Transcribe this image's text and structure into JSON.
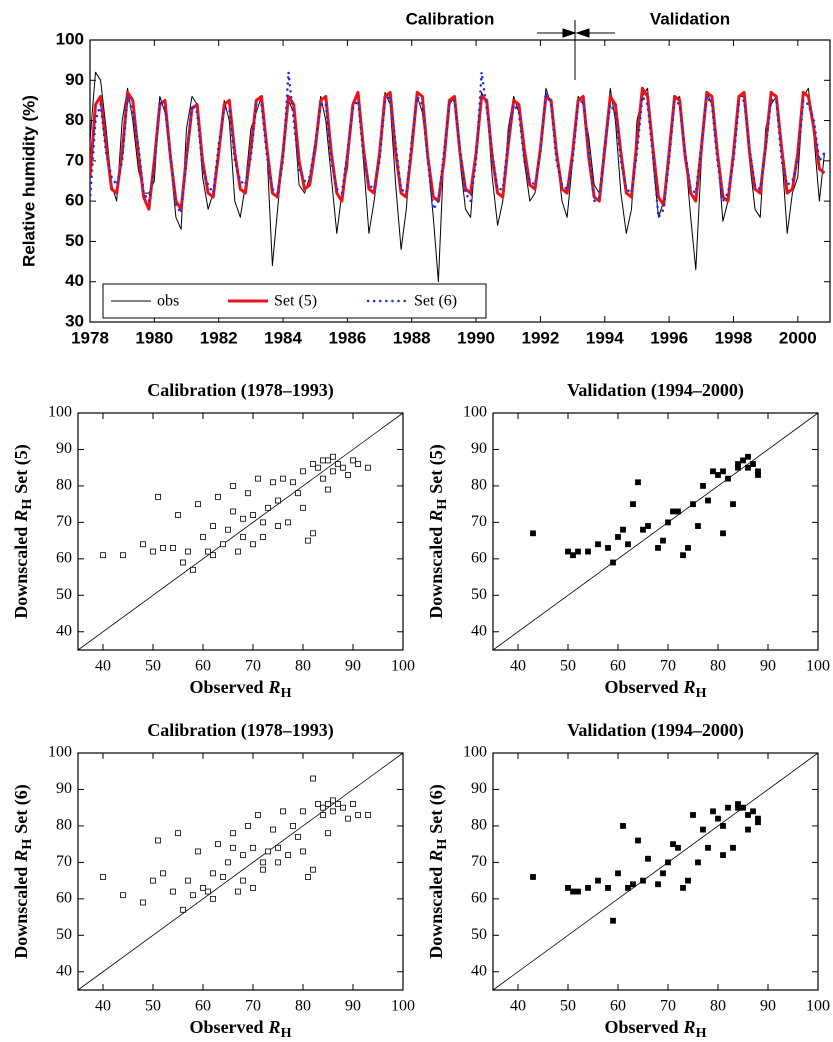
{
  "chart_data": [
    {
      "type": "line",
      "annotations": [
        "Calibration",
        "Validation"
      ],
      "ylabel": "Relative humidity (%)",
      "xlim": [
        1978,
        2001
      ],
      "ylim": [
        30,
        100
      ],
      "xticks": [
        1978,
        1980,
        1982,
        1984,
        1986,
        1988,
        1990,
        1992,
        1994,
        1996,
        1998,
        2000
      ],
      "yticks": [
        30,
        40,
        50,
        60,
        70,
        80,
        90,
        100
      ],
      "legend": "lower left",
      "x": [
        1978,
        1978.17,
        1978.33,
        1978.5,
        1978.67,
        1978.83,
        1979,
        1979.17,
        1979.33,
        1979.5,
        1979.67,
        1979.83,
        1980,
        1980.17,
        1980.33,
        1980.5,
        1980.67,
        1980.83,
        1981,
        1981.17,
        1981.33,
        1981.5,
        1981.67,
        1981.83,
        1982,
        1982.17,
        1982.33,
        1982.5,
        1982.67,
        1982.83,
        1983,
        1983.17,
        1983.33,
        1983.5,
        1983.67,
        1983.83,
        1984,
        1984.17,
        1984.33,
        1984.5,
        1984.67,
        1984.83,
        1985,
        1985.17,
        1985.33,
        1985.5,
        1985.67,
        1985.83,
        1986,
        1986.17,
        1986.33,
        1986.5,
        1986.67,
        1986.83,
        1987,
        1987.17,
        1987.33,
        1987.5,
        1987.67,
        1987.83,
        1988,
        1988.17,
        1988.33,
        1988.5,
        1988.67,
        1988.83,
        1989,
        1989.17,
        1989.33,
        1989.5,
        1989.67,
        1989.83,
        1990,
        1990.17,
        1990.33,
        1990.5,
        1990.67,
        1990.83,
        1991,
        1991.17,
        1991.33,
        1991.5,
        1991.67,
        1991.83,
        1992,
        1992.17,
        1992.33,
        1992.5,
        1992.67,
        1992.83,
        1993,
        1993.17,
        1993.33,
        1993.5,
        1993.67,
        1993.83,
        1994,
        1994.17,
        1994.33,
        1994.5,
        1994.67,
        1994.83,
        1995,
        1995.17,
        1995.33,
        1995.5,
        1995.67,
        1995.83,
        1996,
        1996.17,
        1996.33,
        1996.5,
        1996.67,
        1996.83,
        1997,
        1997.17,
        1997.33,
        1997.5,
        1997.67,
        1997.83,
        1998,
        1998.17,
        1998.33,
        1998.5,
        1998.67,
        1998.83,
        1999,
        1999.17,
        1999.33,
        1999.5,
        1999.67,
        1999.83,
        2000,
        2000.17,
        2000.33,
        2000.5,
        2000.67,
        2000.83
      ],
      "series": [
        {
          "name": "obs",
          "color": "#000000",
          "linestyle": "solid",
          "line_width": 1,
          "values": [
            75,
            92,
            90,
            78,
            64,
            60,
            80,
            88,
            80,
            68,
            62,
            62,
            65,
            86,
            82,
            70,
            56,
            53,
            78,
            86,
            84,
            66,
            58,
            62,
            70,
            85,
            80,
            60,
            56,
            64,
            78,
            82,
            86,
            72,
            44,
            58,
            72,
            85,
            82,
            64,
            62,
            66,
            75,
            86,
            80,
            66,
            52,
            62,
            68,
            84,
            86,
            70,
            52,
            60,
            70,
            87,
            84,
            64,
            48,
            58,
            76,
            86,
            82,
            70,
            56,
            40,
            72,
            84,
            86,
            70,
            58,
            56,
            74,
            87,
            84,
            66,
            54,
            60,
            78,
            86,
            82,
            70,
            60,
            62,
            72,
            88,
            84,
            72,
            60,
            56,
            70,
            86,
            84,
            76,
            64,
            62,
            75,
            88,
            80,
            62,
            52,
            58,
            80,
            86,
            88,
            70,
            56,
            60,
            74,
            85,
            86,
            72,
            56,
            43,
            70,
            87,
            84,
            72,
            55,
            60,
            72,
            86,
            86,
            70,
            58,
            56,
            78,
            84,
            86,
            72,
            52,
            62,
            66,
            86,
            88,
            76,
            60,
            72
          ]
        },
        {
          "name": "Set (5)",
          "color": "#e8141c",
          "linestyle": "solid",
          "line_width": 3,
          "values": [
            66,
            84,
            86,
            74,
            63,
            62,
            72,
            87,
            85,
            72,
            61,
            58,
            70,
            84,
            85,
            71,
            60,
            58,
            71,
            83,
            84,
            70,
            62,
            61,
            72,
            84,
            85,
            72,
            63,
            62,
            73,
            85,
            86,
            73,
            62,
            61,
            72,
            86,
            84,
            70,
            63,
            64,
            73,
            85,
            86,
            72,
            62,
            60,
            71,
            84,
            87,
            73,
            63,
            62,
            72,
            86,
            87,
            72,
            62,
            61,
            73,
            87,
            86,
            71,
            61,
            60,
            70,
            85,
            86,
            72,
            63,
            62,
            72,
            86,
            85,
            71,
            62,
            61,
            74,
            85,
            84,
            73,
            64,
            63,
            73,
            86,
            85,
            72,
            63,
            62,
            72,
            85,
            86,
            71,
            61,
            60,
            73,
            86,
            84,
            72,
            62,
            61,
            75,
            88,
            86,
            73,
            61,
            59,
            72,
            86,
            85,
            71,
            62,
            60,
            73,
            87,
            86,
            72,
            61,
            60,
            72,
            86,
            87,
            72,
            63,
            62,
            74,
            87,
            86,
            73,
            62,
            63,
            72,
            87,
            86,
            78,
            68,
            67
          ]
        },
        {
          "name": "Set (6)",
          "color": "#1a2cf0",
          "linestyle": "dotted",
          "line_width": 2.5,
          "values": [
            60,
            80,
            84,
            72,
            66,
            64,
            70,
            86,
            82,
            74,
            62,
            60,
            68,
            85,
            83,
            72,
            59,
            57,
            70,
            84,
            82,
            68,
            64,
            62,
            74,
            83,
            83,
            70,
            65,
            64,
            71,
            84,
            84,
            71,
            63,
            62,
            70,
            92,
            80,
            68,
            65,
            66,
            74,
            84,
            84,
            70,
            63,
            62,
            72,
            83,
            85,
            71,
            64,
            63,
            70,
            85,
            86,
            74,
            63,
            62,
            75,
            86,
            84,
            70,
            58,
            60,
            72,
            84,
            85,
            73,
            62,
            60,
            70,
            92,
            83,
            72,
            63,
            63,
            75,
            84,
            82,
            70,
            65,
            64,
            72,
            87,
            84,
            70,
            64,
            63,
            70,
            84,
            85,
            72,
            60,
            61,
            74,
            84,
            82,
            70,
            63,
            62,
            72,
            86,
            84,
            71,
            56,
            58,
            70,
            85,
            84,
            72,
            63,
            62,
            74,
            86,
            84,
            70,
            60,
            62,
            70,
            84,
            85,
            73,
            64,
            63,
            73,
            85,
            85,
            70,
            64,
            65,
            70,
            85,
            84,
            80,
            70,
            72
          ]
        }
      ]
    },
    {
      "type": "scatter",
      "title": "Calibration (1978–1993)",
      "marker": "open-square",
      "color": "#000000",
      "xlabel": {
        "text": "Observed",
        "symbol": "R",
        "subscript": "H"
      },
      "ylabel": {
        "text": "Downscaled",
        "symbol": "R",
        "subscript": "H",
        "suffix": "Set (5)"
      },
      "xlim": [
        35,
        100
      ],
      "ylim": [
        35,
        100
      ],
      "xticks": [
        40,
        50,
        60,
        70,
        80,
        90,
        100
      ],
      "yticks": [
        40,
        50,
        60,
        70,
        80,
        90,
        100
      ],
      "x": [
        40,
        44,
        48,
        50,
        51,
        52,
        54,
        55,
        56,
        57,
        58,
        59,
        60,
        61,
        62,
        62,
        63,
        64,
        65,
        66,
        67,
        68,
        68,
        69,
        70,
        71,
        72,
        73,
        74,
        75,
        75,
        76,
        77,
        78,
        79,
        80,
        80,
        81,
        82,
        83,
        84,
        84,
        85,
        86,
        86,
        87,
        88,
        89,
        90,
        91,
        93,
        72,
        70,
        85,
        82,
        66
      ],
      "values": [
        61,
        61,
        64,
        62,
        77,
        63,
        63,
        72,
        59,
        62,
        57,
        75,
        66,
        62,
        69,
        61,
        77,
        64,
        68,
        80,
        62,
        66,
        71,
        78,
        72,
        82,
        66,
        74,
        81,
        69,
        76,
        82,
        70,
        81,
        78,
        84,
        74,
        65,
        86,
        85,
        87,
        82,
        79,
        88,
        84,
        86,
        85,
        83,
        87,
        86,
        85,
        70,
        64,
        87,
        67,
        73
      ]
    },
    {
      "type": "scatter",
      "title": "Validation (1994–2000)",
      "marker": "filled-square",
      "color": "#000000",
      "xlabel": {
        "text": "Observed",
        "symbol": "R",
        "subscript": "H"
      },
      "ylabel": {
        "text": "Downscaled",
        "symbol": "R",
        "subscript": "H",
        "suffix": "Set (5)"
      },
      "xlim": [
        35,
        100
      ],
      "ylim": [
        35,
        100
      ],
      "xticks": [
        40,
        50,
        60,
        70,
        80,
        90,
        100
      ],
      "yticks": [
        40,
        50,
        60,
        70,
        80,
        90,
        100
      ],
      "x": [
        43,
        50,
        51,
        52,
        54,
        56,
        58,
        59,
        60,
        61,
        62,
        63,
        64,
        65,
        66,
        68,
        69,
        70,
        71,
        72,
        73,
        74,
        75,
        76,
        77,
        78,
        79,
        80,
        81,
        82,
        83,
        84,
        85,
        86,
        87,
        88,
        88,
        81,
        84,
        86
      ],
      "values": [
        67,
        62,
        61,
        62,
        62,
        64,
        63,
        59,
        66,
        68,
        64,
        75,
        81,
        68,
        69,
        63,
        65,
        70,
        73,
        73,
        61,
        63,
        75,
        69,
        80,
        76,
        84,
        83,
        67,
        82,
        75,
        86,
        87,
        88,
        86,
        84,
        83,
        84,
        85,
        85
      ]
    },
    {
      "type": "scatter",
      "title": "Calibration (1978–1993)",
      "marker": "open-square",
      "color": "#000000",
      "xlabel": {
        "text": "Observed",
        "symbol": "R",
        "subscript": "H"
      },
      "ylabel": {
        "text": "Downscaled",
        "symbol": "R",
        "subscript": "H",
        "suffix": "Set (6)"
      },
      "xlim": [
        35,
        100
      ],
      "ylim": [
        35,
        100
      ],
      "xticks": [
        40,
        50,
        60,
        70,
        80,
        90,
        100
      ],
      "yticks": [
        40,
        50,
        60,
        70,
        80,
        90,
        100
      ],
      "x": [
        40,
        44,
        48,
        50,
        51,
        52,
        54,
        55,
        56,
        57,
        58,
        59,
        60,
        61,
        62,
        62,
        63,
        64,
        65,
        66,
        67,
        68,
        68,
        69,
        70,
        71,
        72,
        73,
        74,
        75,
        75,
        76,
        77,
        78,
        79,
        80,
        80,
        81,
        82,
        83,
        84,
        84,
        85,
        86,
        86,
        87,
        88,
        89,
        90,
        91,
        93,
        72,
        70,
        85,
        82,
        66
      ],
      "values": [
        66,
        61,
        59,
        65,
        76,
        67,
        62,
        78,
        57,
        65,
        61,
        73,
        63,
        62,
        67,
        60,
        75,
        66,
        70,
        78,
        62,
        65,
        72,
        80,
        74,
        83,
        68,
        73,
        79,
        70,
        74,
        84,
        72,
        80,
        77,
        84,
        73,
        66,
        93,
        86,
        85,
        83,
        78,
        87,
        84,
        86,
        85,
        82,
        86,
        83,
        83,
        70,
        63,
        86,
        68,
        74
      ]
    },
    {
      "type": "scatter",
      "title": "Validation (1994–2000)",
      "marker": "filled-square",
      "color": "#000000",
      "xlabel": {
        "text": "Observed",
        "symbol": "R",
        "subscript": "H"
      },
      "ylabel": {
        "text": "Downscaled",
        "symbol": "R",
        "subscript": "H",
        "suffix": "Set (6)"
      },
      "xlim": [
        35,
        100
      ],
      "ylim": [
        35,
        100
      ],
      "xticks": [
        40,
        50,
        60,
        70,
        80,
        90,
        100
      ],
      "yticks": [
        40,
        50,
        60,
        70,
        80,
        90,
        100
      ],
      "x": [
        43,
        50,
        51,
        52,
        54,
        56,
        58,
        59,
        60,
        61,
        62,
        63,
        64,
        65,
        66,
        68,
        69,
        70,
        71,
        72,
        73,
        74,
        75,
        76,
        77,
        78,
        79,
        80,
        81,
        82,
        83,
        84,
        85,
        86,
        87,
        88,
        88,
        81,
        84,
        86
      ],
      "values": [
        66,
        63,
        62,
        62,
        63,
        65,
        63,
        54,
        67,
        80,
        63,
        64,
        76,
        65,
        71,
        64,
        67,
        70,
        75,
        74,
        63,
        65,
        83,
        70,
        79,
        74,
        84,
        82,
        72,
        85,
        74,
        86,
        85,
        83,
        84,
        81,
        82,
        80,
        85,
        79
      ]
    }
  ]
}
